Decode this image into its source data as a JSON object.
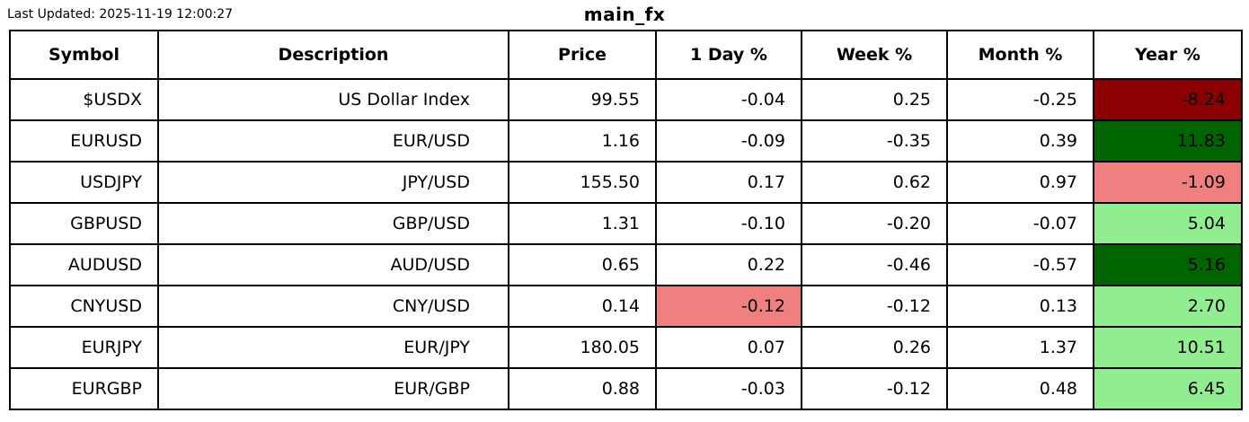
{
  "meta": {
    "last_updated": "Last Updated: 2025-11-19 12:00:27",
    "title": "main_fx"
  },
  "colors": {
    "strong_negative": "#8b0000",
    "negative": "#f08080",
    "positive": "#90ee90",
    "strong_positive": "#006400",
    "border": "#000000",
    "background": "#ffffff",
    "text": "#000000"
  },
  "chart_data": {
    "type": "table",
    "title": "main_fx",
    "last_updated": "Last Updated: 2025-11-19 12:00:27",
    "columns": [
      "Symbol",
      "Description",
      "Price",
      "1 Day %",
      "Week %",
      "Month %",
      "Year %"
    ],
    "rows": [
      {
        "symbol": "$USDX",
        "description": "US Dollar Index",
        "price": "99.55",
        "day": "-0.04",
        "week": "0.25",
        "month": "-0.25",
        "year": "-8.24",
        "cell_colors": {
          "year": "#8b0000"
        }
      },
      {
        "symbol": "EURUSD",
        "description": "EUR/USD",
        "price": "1.16",
        "day": "-0.09",
        "week": "-0.35",
        "month": "0.39",
        "year": "11.83",
        "cell_colors": {
          "year": "#006400"
        }
      },
      {
        "symbol": "USDJPY",
        "description": "JPY/USD",
        "price": "155.50",
        "day": "0.17",
        "week": "0.62",
        "month": "0.97",
        "year": "-1.09",
        "cell_colors": {
          "year": "#f08080"
        }
      },
      {
        "symbol": "GBPUSD",
        "description": "GBP/USD",
        "price": "1.31",
        "day": "-0.10",
        "week": "-0.20",
        "month": "-0.07",
        "year": "5.04",
        "cell_colors": {
          "year": "#90ee90"
        }
      },
      {
        "symbol": "AUDUSD",
        "description": "AUD/USD",
        "price": "0.65",
        "day": "0.22",
        "week": "-0.46",
        "month": "-0.57",
        "year": "5.16",
        "cell_colors": {
          "year": "#006400"
        }
      },
      {
        "symbol": "CNYUSD",
        "description": "CNY/USD",
        "price": "0.14",
        "day": "-0.12",
        "week": "-0.12",
        "month": "0.13",
        "year": "2.70",
        "cell_colors": {
          "day": "#f08080",
          "year": "#90ee90"
        }
      },
      {
        "symbol": "EURJPY",
        "description": "EUR/JPY",
        "price": "180.05",
        "day": "0.07",
        "week": "0.26",
        "month": "1.37",
        "year": "10.51",
        "cell_colors": {
          "year": "#90ee90"
        }
      },
      {
        "symbol": "EURGBP",
        "description": "EUR/GBP",
        "price": "0.88",
        "day": "-0.03",
        "week": "-0.12",
        "month": "0.48",
        "year": "6.45",
        "cell_colors": {
          "year": "#90ee90"
        }
      }
    ]
  }
}
